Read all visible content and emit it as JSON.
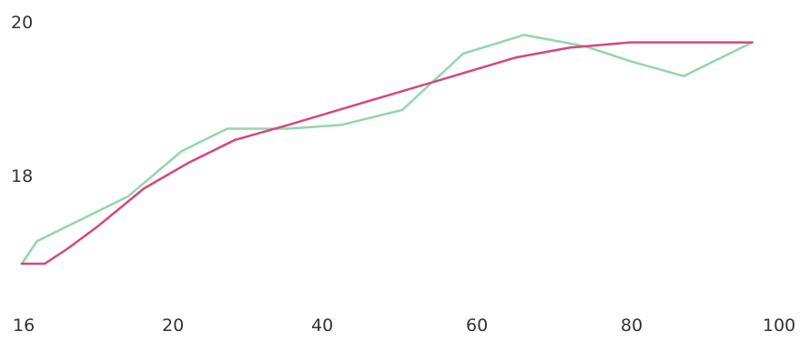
{
  "chart_data": {
    "type": "line",
    "title": "",
    "xlabel": "",
    "ylabel": "",
    "x_ticks": [
      "16",
      "20",
      "40",
      "60",
      "80",
      "100"
    ],
    "y_ticks": [
      "20",
      "18"
    ],
    "grid": false,
    "legend": "none",
    "series": [
      {
        "color": "#8fd9a8",
        "points": [
          [
            0,
            16.8
          ],
          [
            2,
            17.1
          ],
          [
            10,
            17.5
          ],
          [
            14,
            17.7
          ],
          [
            21,
            18.3
          ],
          [
            27,
            18.6
          ],
          [
            29,
            18.6
          ],
          [
            35,
            18.6
          ],
          [
            42,
            18.65
          ],
          [
            50,
            18.85
          ],
          [
            58,
            19.6
          ],
          [
            66,
            19.85
          ],
          [
            74,
            19.7
          ],
          [
            80,
            19.5
          ],
          [
            87,
            19.3
          ],
          [
            96,
            19.75
          ]
        ]
      },
      {
        "color": "#d9447f",
        "points": [
          [
            0,
            16.8
          ],
          [
            3,
            16.8
          ],
          [
            6,
            17.0
          ],
          [
            10,
            17.3
          ],
          [
            16,
            17.8
          ],
          [
            22,
            18.15
          ],
          [
            28,
            18.45
          ],
          [
            35,
            18.65
          ],
          [
            45,
            18.95
          ],
          [
            55,
            19.25
          ],
          [
            65,
            19.55
          ],
          [
            72,
            19.68
          ],
          [
            80,
            19.75
          ],
          [
            88,
            19.75
          ],
          [
            96,
            19.75
          ]
        ]
      }
    ]
  }
}
